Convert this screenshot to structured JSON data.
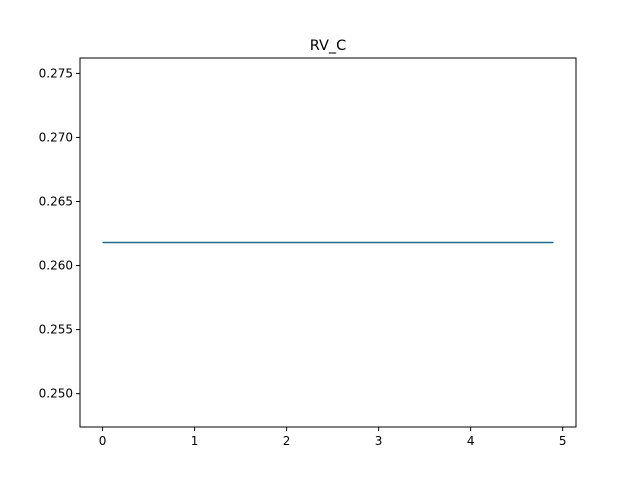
{
  "chart_data": {
    "type": "line",
    "title": "RV_C",
    "xlabel": "",
    "ylabel": "",
    "xlim": [
      -0.245,
      5.145
    ],
    "ylim": [
      0.2474,
      0.2762
    ],
    "xticks": [
      0,
      1,
      2,
      3,
      4,
      5
    ],
    "xtick_labels": [
      "0",
      "1",
      "2",
      "3",
      "4",
      "5"
    ],
    "yticks": [
      0.25,
      0.255,
      0.26,
      0.265,
      0.27,
      0.275
    ],
    "ytick_labels": [
      "0.250",
      "0.255",
      "0.260",
      "0.265",
      "0.270",
      "0.275"
    ],
    "grid": false,
    "series": [
      {
        "color": "#1f6e8c",
        "x": [
          0.0,
          4.9
        ],
        "y": [
          0.2618,
          0.2618
        ]
      }
    ]
  }
}
